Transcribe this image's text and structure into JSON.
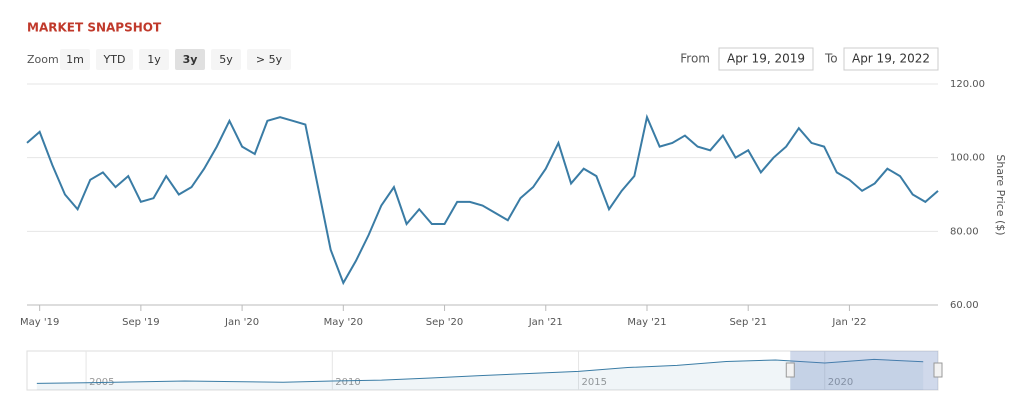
{
  "chart_data": {
    "type": "line",
    "title": "MARKET SNAPSHOT",
    "zoom_label": "Zoom",
    "zoom_buttons": [
      "1m",
      "YTD",
      "1y",
      "3y",
      "5y",
      "> 5y"
    ],
    "active_button": 3,
    "from_label": "From",
    "from_date": "Apr 19, 2019",
    "to_label": "To",
    "to_date": "Apr 19, 2022",
    "y_label": "Share Price ($)",
    "categories": [
      null,
      "May '19",
      null,
      null,
      null,
      null,
      null,
      null,
      null,
      "Sep '19",
      null,
      null,
      null,
      null,
      null,
      null,
      null,
      "Jan '20",
      null,
      null,
      null,
      null,
      null,
      null,
      null,
      "May '20",
      null,
      null,
      null,
      null,
      null,
      null,
      null,
      "Sep '20",
      null,
      null,
      null,
      null,
      null,
      null,
      null,
      "Jan '21",
      null,
      null,
      null,
      null,
      null,
      null,
      null,
      "May '21",
      null,
      null,
      null,
      null,
      null,
      null,
      null,
      "Sep '21",
      null,
      null,
      null,
      null,
      null,
      null,
      null,
      "Jan '22",
      null,
      null,
      null,
      null,
      null,
      null,
      null
    ],
    "series": [
      {
        "name": "Share Price",
        "color": "#3a7ca5",
        "values": [
          104,
          107,
          98,
          90,
          86,
          94,
          96,
          92,
          95,
          88,
          89,
          95,
          90,
          92,
          97,
          103,
          110,
          103,
          101,
          110,
          111,
          110,
          109,
          92,
          75,
          66,
          72,
          79,
          87,
          92,
          82,
          86,
          82,
          82,
          88,
          88,
          87,
          85,
          83,
          89,
          92,
          97,
          104,
          93,
          97,
          95,
          86,
          91,
          95,
          111,
          103,
          104,
          106,
          103,
          102,
          106,
          100,
          102,
          96,
          100,
          103,
          108,
          104,
          103,
          96,
          94,
          91,
          93,
          97,
          95,
          90,
          88,
          91
        ]
      }
    ],
    "ylim": [
      60,
      120
    ],
    "yticks": [
      {
        "value": 60,
        "label": "60.00"
      },
      {
        "value": 80,
        "label": "80.00"
      },
      {
        "value": 100,
        "label": "100.00"
      },
      {
        "value": 120,
        "label": "120.00"
      }
    ],
    "grid": true,
    "navigator": {
      "x": [
        2004,
        2005,
        2006,
        2007,
        2008,
        2009,
        2010,
        2011,
        2012,
        2013,
        2014,
        2015,
        2016,
        2017,
        2018,
        2019,
        2020,
        2021,
        2022
      ],
      "values": [
        22,
        24,
        27,
        30,
        28,
        26,
        30,
        33,
        40,
        48,
        55,
        62,
        75,
        82,
        95,
        100,
        90,
        102,
        94
      ],
      "xlim": [
        2003.8,
        2022.3
      ],
      "ylim": [
        0,
        130
      ],
      "xticks": [
        2005,
        2010,
        2015,
        2020
      ],
      "selection": [
        2019.3,
        2022.3
      ]
    }
  }
}
